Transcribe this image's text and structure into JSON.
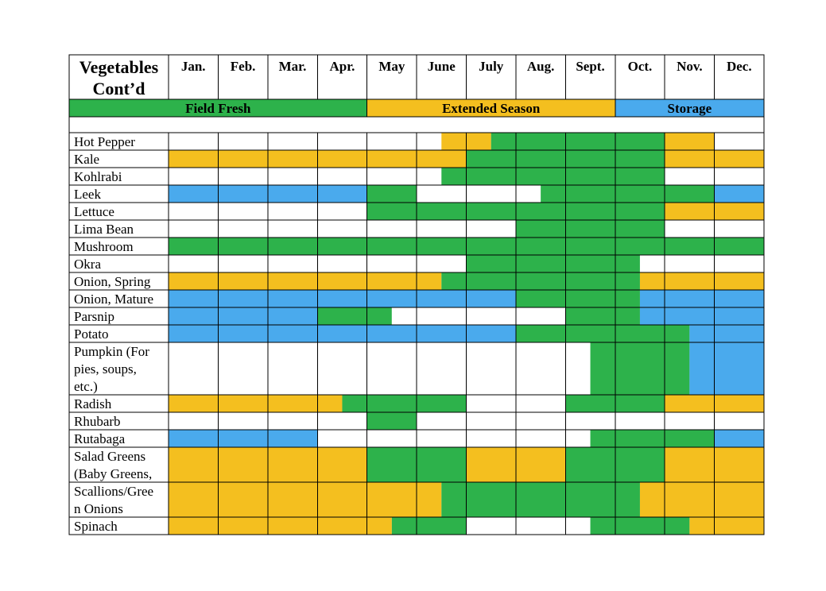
{
  "title_lines": [
    "Vegetables",
    "Cont’d"
  ],
  "months": [
    "Jan.",
    "Feb.",
    "Mar.",
    "Apr.",
    "May",
    "June",
    "July",
    "Aug.",
    "Sept.",
    "Oct.",
    "Nov.",
    "Dec."
  ],
  "legend": [
    {
      "label": "Field Fresh",
      "color": "#2db24b",
      "start_month": 0,
      "end_month": 4
    },
    {
      "label": "Extended Season",
      "color": "#f4bf1f",
      "start_month": 4,
      "end_month": 9
    },
    {
      "label": "Storage",
      "color": "#4aaaed",
      "start_month": 9,
      "end_month": 12
    }
  ],
  "colors": {
    "G": "#2db24b",
    "Y": "#f4bf1f",
    "B": "#4aaaed",
    "W": "#ffffff",
    "grid": "#000000"
  },
  "rows": [
    {
      "label_lines": [
        "Hot Pepper"
      ],
      "months": [
        "W",
        "W",
        "W",
        "W",
        "W",
        "WY",
        "YG",
        "G",
        "G",
        "G",
        "Y",
        "W"
      ]
    },
    {
      "label_lines": [
        "Kale"
      ],
      "months": [
        "Y",
        "Y",
        "Y",
        "Y",
        "Y",
        "Y",
        "G",
        "G",
        "G",
        "G",
        "Y",
        "Y"
      ]
    },
    {
      "label_lines": [
        "Kohlrabi"
      ],
      "months": [
        "W",
        "W",
        "W",
        "W",
        "W",
        "WG",
        "G",
        "G",
        "G",
        "G",
        "W",
        "W"
      ]
    },
    {
      "label_lines": [
        "Leek"
      ],
      "months": [
        "B",
        "B",
        "B",
        "B",
        "G",
        "W",
        "W",
        "WG",
        "G",
        "G",
        "G",
        "B"
      ]
    },
    {
      "label_lines": [
        "Lettuce"
      ],
      "months": [
        "W",
        "W",
        "W",
        "W",
        "G",
        "G",
        "G",
        "G",
        "G",
        "G",
        "Y",
        "Y"
      ]
    },
    {
      "label_lines": [
        "Lima Bean"
      ],
      "months": [
        "W",
        "W",
        "W",
        "W",
        "W",
        "W",
        "W",
        "G",
        "G",
        "G",
        "W",
        "W"
      ]
    },
    {
      "label_lines": [
        "Mushroom"
      ],
      "months": [
        "G",
        "G",
        "G",
        "G",
        "G",
        "G",
        "G",
        "G",
        "G",
        "G",
        "G",
        "G"
      ]
    },
    {
      "label_lines": [
        "Okra"
      ],
      "months": [
        "W",
        "W",
        "W",
        "W",
        "W",
        "W",
        "G",
        "G",
        "G",
        "GW",
        "W",
        "W"
      ]
    },
    {
      "label_lines": [
        "Onion, Spring"
      ],
      "months": [
        "Y",
        "Y",
        "Y",
        "Y",
        "Y",
        "YG",
        "G",
        "G",
        "G",
        "GY",
        "Y",
        "Y"
      ]
    },
    {
      "label_lines": [
        "Onion, Mature"
      ],
      "months": [
        "B",
        "B",
        "B",
        "B",
        "B",
        "B",
        "B",
        "G",
        "G",
        "GB",
        "B",
        "B"
      ]
    },
    {
      "label_lines": [
        "Parsnip"
      ],
      "months": [
        "B",
        "B",
        "B",
        "G",
        "GW",
        "W",
        "W",
        "W",
        "G",
        "GB",
        "B",
        "B"
      ]
    },
    {
      "label_lines": [
        "Potato"
      ],
      "months": [
        "B",
        "B",
        "B",
        "B",
        "B",
        "B",
        "B",
        "G",
        "G",
        "G",
        "GB",
        "B"
      ]
    },
    {
      "label_lines": [
        "Pumpkin (For",
        "pies, soups,",
        "etc.)"
      ],
      "months": [
        "W",
        "W",
        "W",
        "W",
        "W",
        "W",
        "W",
        "W",
        "WG",
        "G",
        "GB",
        "B"
      ]
    },
    {
      "label_lines": [
        "Radish"
      ],
      "months": [
        "Y",
        "Y",
        "Y",
        "YG",
        "G",
        "G",
        "W",
        "W",
        "G",
        "G",
        "Y",
        "Y"
      ]
    },
    {
      "label_lines": [
        "Rhubarb"
      ],
      "months": [
        "W",
        "W",
        "W",
        "W",
        "G",
        "W",
        "W",
        "W",
        "W",
        "W",
        "W",
        "W"
      ]
    },
    {
      "label_lines": [
        "Rutabaga"
      ],
      "months": [
        "B",
        "B",
        "B",
        "W",
        "W",
        "W",
        "W",
        "W",
        "WG",
        "G",
        "G",
        "B"
      ]
    },
    {
      "label_lines": [
        "Salad Greens",
        "(Baby Greens,"
      ],
      "months": [
        "Y",
        "Y",
        "Y",
        "Y",
        "G",
        "G",
        "Y",
        "Y",
        "G",
        "G",
        "Y",
        "Y"
      ]
    },
    {
      "label_lines": [
        "Scallions/Gree",
        "n Onions"
      ],
      "months": [
        "Y",
        "Y",
        "Y",
        "Y",
        "Y",
        "YG",
        "G",
        "G",
        "G",
        "GY",
        "Y",
        "Y"
      ]
    },
    {
      "label_lines": [
        "Spinach"
      ],
      "months": [
        "Y",
        "Y",
        "Y",
        "Y",
        "YG",
        "G",
        "W",
        "W",
        "WG",
        "G",
        "GY",
        "Y"
      ]
    }
  ]
}
